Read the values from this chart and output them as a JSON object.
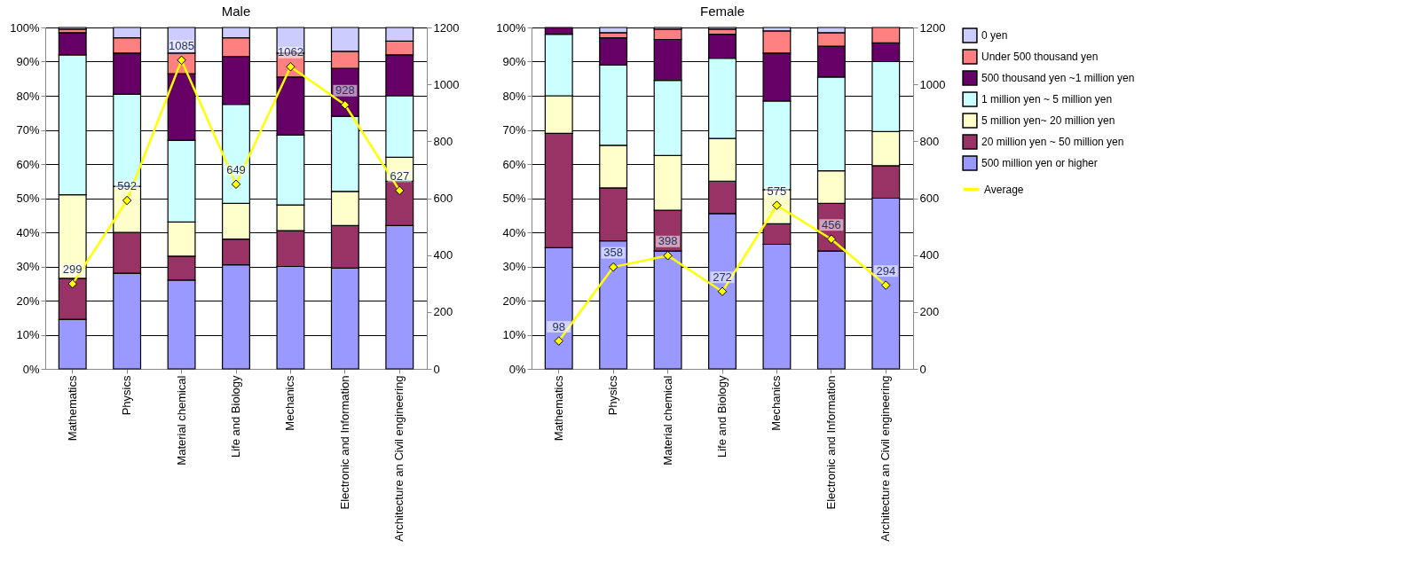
{
  "chart_data": [
    {
      "type": "bar",
      "title": "Male",
      "stacked": true,
      "grid": "y",
      "legend": "right",
      "marker": "diamond",
      "line_style": "solid",
      "categories": [
        "Mathematics",
        "Physics",
        "Material chemical",
        "Life and Biology",
        "Mechanics",
        "Electronic and Information",
        "Architecture an Civil engineering"
      ],
      "ylim": [
        0,
        100
      ],
      "yticks": [
        {
          "value": 0,
          "label": "0%"
        },
        {
          "value": 10,
          "label": "10%"
        },
        {
          "value": 20,
          "label": "20%"
        },
        {
          "value": 30,
          "label": "30%"
        },
        {
          "value": 40,
          "label": "40%"
        },
        {
          "value": 50,
          "label": "50%"
        },
        {
          "value": 60,
          "label": "60%"
        },
        {
          "value": 70,
          "label": "70%"
        },
        {
          "value": 80,
          "label": "80%"
        },
        {
          "value": 90,
          "label": "90%"
        },
        {
          "value": 100,
          "label": "100%"
        }
      ],
      "y2lim": [
        0,
        1200
      ],
      "y2ticks": [
        0,
        200,
        400,
        600,
        800,
        1000,
        1200
      ],
      "series": [
        {
          "name": "500 million yen or higher",
          "color": "#9999ff",
          "values": [
            14.5,
            28,
            26,
            30.5,
            30,
            29.5,
            42
          ]
        },
        {
          "name": "20 million yen ~ 50 million yen",
          "color": "#993366",
          "values": [
            12,
            12,
            7,
            7.5,
            10.5,
            12.5,
            13
          ]
        },
        {
          "name": "5 million yen~ 20 million yen",
          "color": "#ffffcc",
          "values": [
            24.5,
            13.5,
            10,
            10.5,
            7.5,
            10,
            7
          ]
        },
        {
          "name": "1 million yen ~ 5 million yen",
          "color": "#ccffff",
          "values": [
            41,
            27,
            24,
            29,
            20.5,
            22,
            18
          ]
        },
        {
          "name": "500 thousand yen ~1 million yen",
          "color": "#660066",
          "values": [
            6.5,
            12,
            19.5,
            14,
            17,
            14,
            12
          ]
        },
        {
          "name": "Under 500 thousand yen",
          "color": "#ff8080",
          "values": [
            1,
            4.5,
            6,
            5.5,
            7,
            5,
            4
          ]
        },
        {
          "name": "0 yen",
          "color": "#ccccff",
          "values": [
            0.5,
            3,
            7.5,
            3,
            7.5,
            7,
            4
          ]
        },
        {
          "name": "Average",
          "color": "#ffff00",
          "type": "line",
          "axis": "y2",
          "values": [
            299,
            592,
            1085,
            649,
            1062,
            928,
            627
          ],
          "value_labels": [
            "299",
            "592",
            "1085",
            "649",
            "1062",
            "928",
            "627"
          ]
        }
      ]
    },
    {
      "type": "bar",
      "title": "Female",
      "stacked": true,
      "grid": "y",
      "legend": "right",
      "marker": "diamond",
      "line_style": "solid",
      "categories": [
        "Mathematics",
        "Physics",
        "Material chemical",
        "Life and Biology",
        "Mechanics",
        "Electronic and Information",
        "Architecture an Civil engineering"
      ],
      "ylim": [
        0,
        100
      ],
      "yticks": [
        {
          "value": 0,
          "label": "0%"
        },
        {
          "value": 10,
          "label": "10%"
        },
        {
          "value": 20,
          "label": "20%"
        },
        {
          "value": 30,
          "label": "30%"
        },
        {
          "value": 40,
          "label": "40%"
        },
        {
          "value": 50,
          "label": "50%"
        },
        {
          "value": 60,
          "label": "60%"
        },
        {
          "value": 70,
          "label": "70%"
        },
        {
          "value": 80,
          "label": "80%"
        },
        {
          "value": 90,
          "label": "90%"
        },
        {
          "value": 100,
          "label": "100%"
        }
      ],
      "y2lim": [
        0,
        1200
      ],
      "y2ticks": [
        0,
        200,
        400,
        600,
        800,
        1000,
        1200
      ],
      "series": [
        {
          "name": "500 million yen or higher",
          "color": "#9999ff",
          "values": [
            35.5,
            37.5,
            34.5,
            45.5,
            36.5,
            34.5,
            50
          ]
        },
        {
          "name": "20 million yen ~ 50 million yen",
          "color": "#993366",
          "values": [
            33.5,
            15.5,
            12,
            9.5,
            6,
            14,
            9.5
          ]
        },
        {
          "name": "5 million yen~ 20 million yen",
          "color": "#ffffcc",
          "values": [
            11,
            12.5,
            16,
            12.5,
            10,
            9.5,
            10
          ]
        },
        {
          "name": "1 million yen ~ 5 million yen",
          "color": "#ccffff",
          "values": [
            18,
            23.5,
            22,
            23.5,
            26,
            27.5,
            20.5
          ]
        },
        {
          "name": "500 thousand yen ~1 million yen",
          "color": "#660066",
          "values": [
            2,
            8,
            12,
            7,
            14,
            9,
            5.5
          ]
        },
        {
          "name": "Under 500 thousand yen",
          "color": "#ff8080",
          "values": [
            0,
            1.5,
            3,
            1.5,
            6.5,
            4,
            4.5
          ]
        },
        {
          "name": "0 yen",
          "color": "#ccccff",
          "values": [
            0,
            1.5,
            0.5,
            0.5,
            1,
            1.5,
            0
          ]
        },
        {
          "name": "Average",
          "color": "#ffff00",
          "type": "line",
          "axis": "y2",
          "values": [
            98,
            358,
            398,
            272,
            575,
            456,
            294
          ],
          "value_labels": [
            "98",
            "358",
            "398",
            "272",
            "575",
            "456",
            "294"
          ]
        }
      ]
    }
  ]
}
